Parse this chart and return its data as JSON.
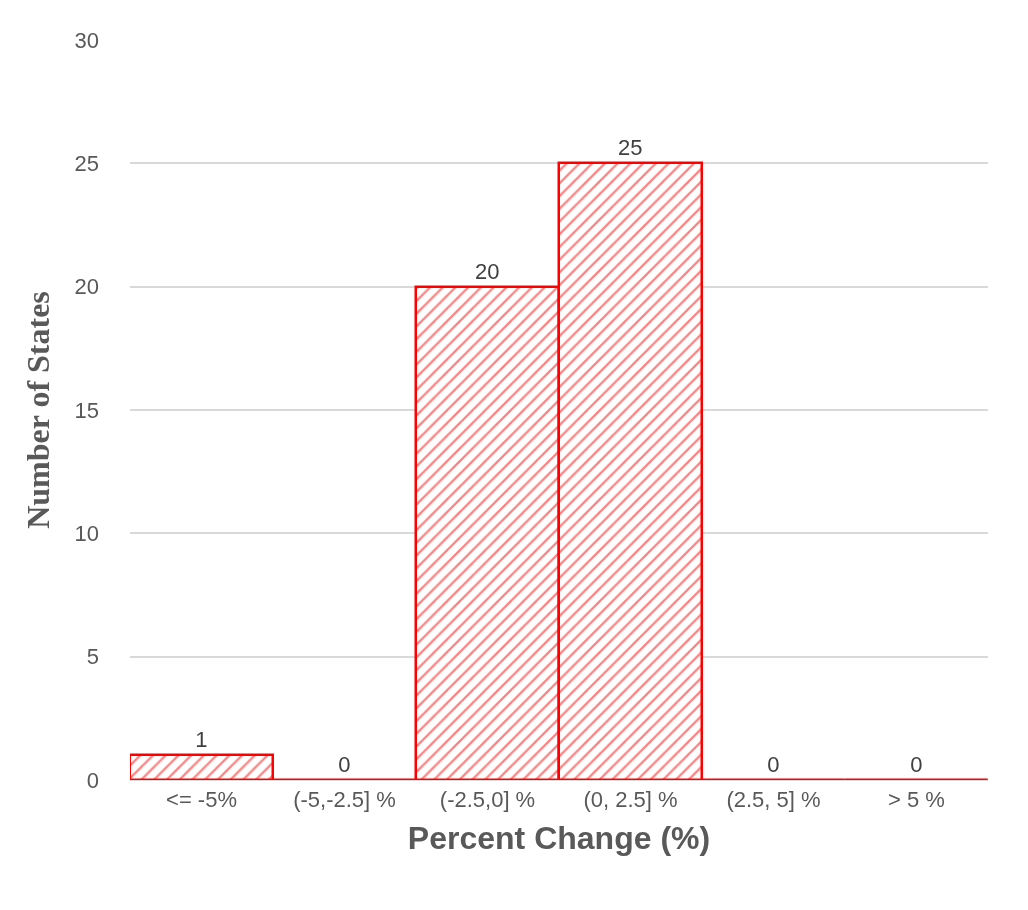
{
  "chart_data": {
    "type": "bar",
    "xlabel": "Percent Change (%)",
    "ylabel": "Number of States",
    "categories": [
      "<= -5%",
      "(-5,-2.5] %",
      "(-2.5,0] %",
      "(0, 2.5] %",
      "(2.5, 5] %",
      "> 5 %"
    ],
    "values": [
      1,
      0,
      20,
      25,
      0,
      0
    ],
    "color": "#ff0000",
    "ylim": [
      0,
      30
    ],
    "yticks": [
      0,
      5,
      10,
      15,
      20,
      25,
      30
    ],
    "grid": "y",
    "data_labels": true,
    "legend": false
  }
}
